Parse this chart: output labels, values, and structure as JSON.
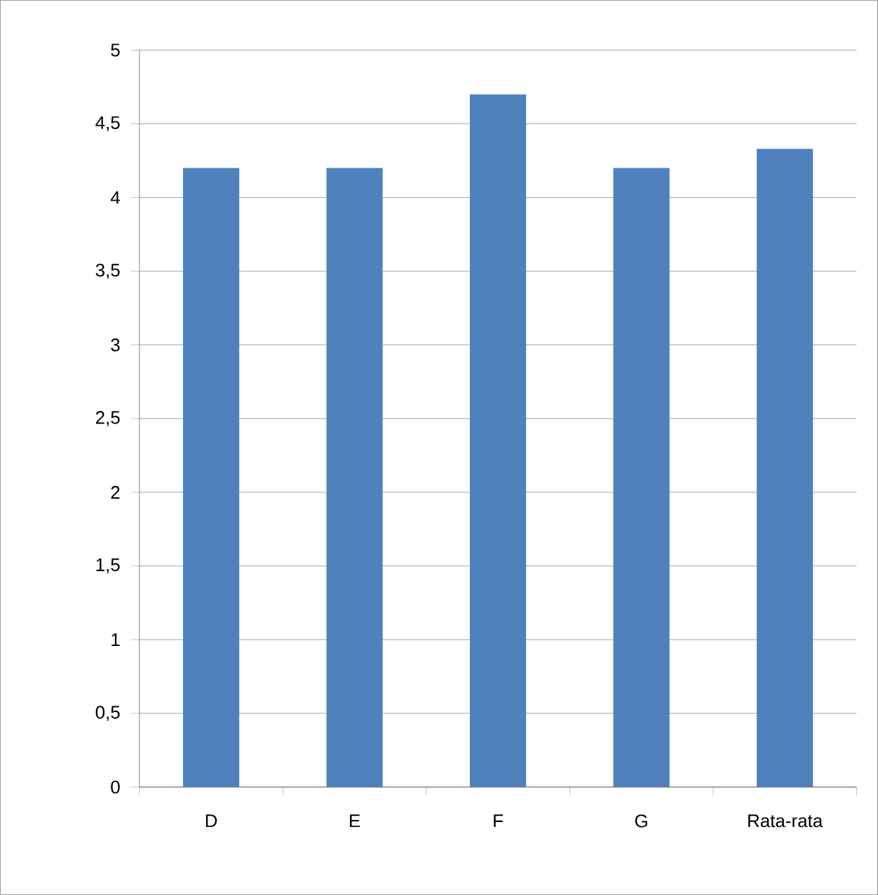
{
  "chart_data": {
    "type": "bar",
    "categories": [
      "D",
      "E",
      "F",
      "G",
      "Rata-rata"
    ],
    "values": [
      4.2,
      4.2,
      4.7,
      4.2,
      4.33
    ],
    "color": "#4f81bd",
    "ylim": [
      0,
      5
    ],
    "yticks": [
      0,
      {
        "value": 0.5,
        "label": "0,5"
      },
      1,
      {
        "value": 1.5,
        "label": "1,5"
      },
      2,
      {
        "value": 2.5,
        "label": "2,5"
      },
      3,
      {
        "value": 3.5,
        "label": "3,5"
      },
      4,
      {
        "value": 4.5,
        "label": "4,5"
      },
      5
    ],
    "grid": "y"
  }
}
